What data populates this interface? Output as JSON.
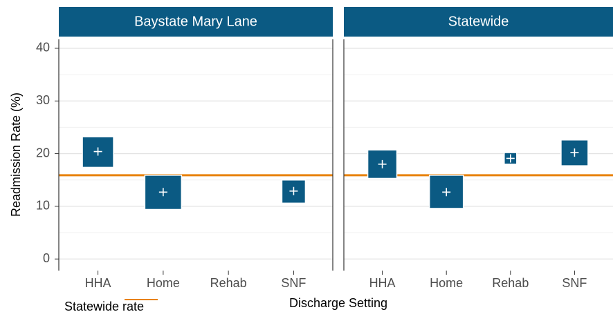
{
  "chart_data": {
    "type": "crossbar",
    "ylabel": "Readmission Rate (%)",
    "xlabel": "Discharge Setting",
    "legend_label": "Statewide rate",
    "reference_value": 15.9,
    "reference_color": "#e8820c",
    "color": "#0b5a83",
    "ylim": [
      -2.2,
      41.7
    ],
    "yticks": [
      0,
      10,
      20,
      30,
      40
    ],
    "minor_yticks": [
      5,
      15,
      25,
      35
    ],
    "grid": true,
    "categories": [
      "HHA",
      "Home",
      "Rehab",
      "SNF"
    ],
    "facets": [
      {
        "title": "Baystate Mary Lane",
        "values": [
          20.4,
          12.7,
          null,
          12.9
        ],
        "lower": [
          17.4,
          9.4,
          null,
          10.6
        ],
        "upper": [
          23.2,
          15.9,
          null,
          15.0
        ],
        "width": [
          45,
          53,
          null,
          34
        ]
      },
      {
        "title": "Statewide",
        "values": [
          18.0,
          12.7,
          19.1,
          20.2
        ],
        "lower": [
          15.3,
          9.6,
          18.0,
          17.7
        ],
        "upper": [
          20.7,
          15.9,
          20.2,
          22.6
        ],
        "width": [
          42,
          49,
          18,
          39
        ]
      }
    ]
  }
}
